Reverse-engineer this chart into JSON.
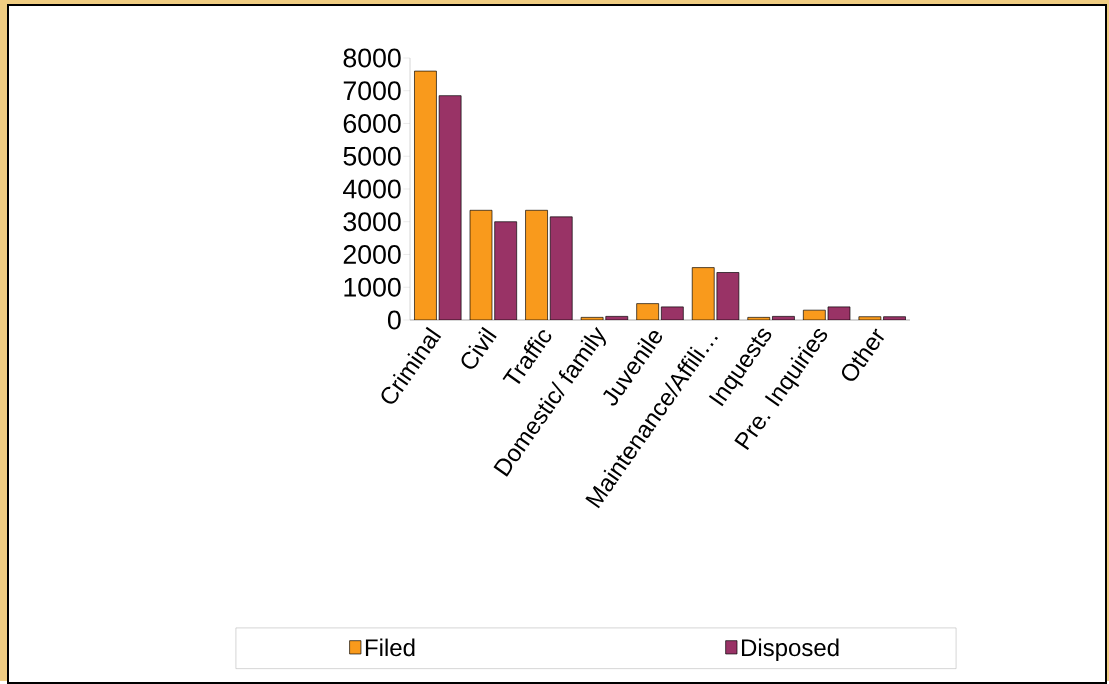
{
  "chart_data": {
    "type": "bar",
    "categories": [
      "Criminal",
      "Civil",
      "Traffic",
      "Domestic/ family",
      "Juvenile",
      "Maintenance/Affili…",
      "Inquests",
      "Pre. Inquiries",
      "Other"
    ],
    "series": [
      {
        "name": "Filed",
        "color": "#f99a1c",
        "values": [
          7600,
          3350,
          3350,
          80,
          500,
          1600,
          80,
          300,
          100
        ]
      },
      {
        "name": "Disposed",
        "color": "#993366",
        "values": [
          6850,
          3000,
          3150,
          110,
          400,
          1450,
          110,
          400,
          100
        ]
      }
    ],
    "ylim": [
      0,
      8000
    ],
    "yticks": [
      0,
      1000,
      2000,
      3000,
      4000,
      5000,
      6000,
      7000,
      8000
    ],
    "legend": "bottom"
  }
}
